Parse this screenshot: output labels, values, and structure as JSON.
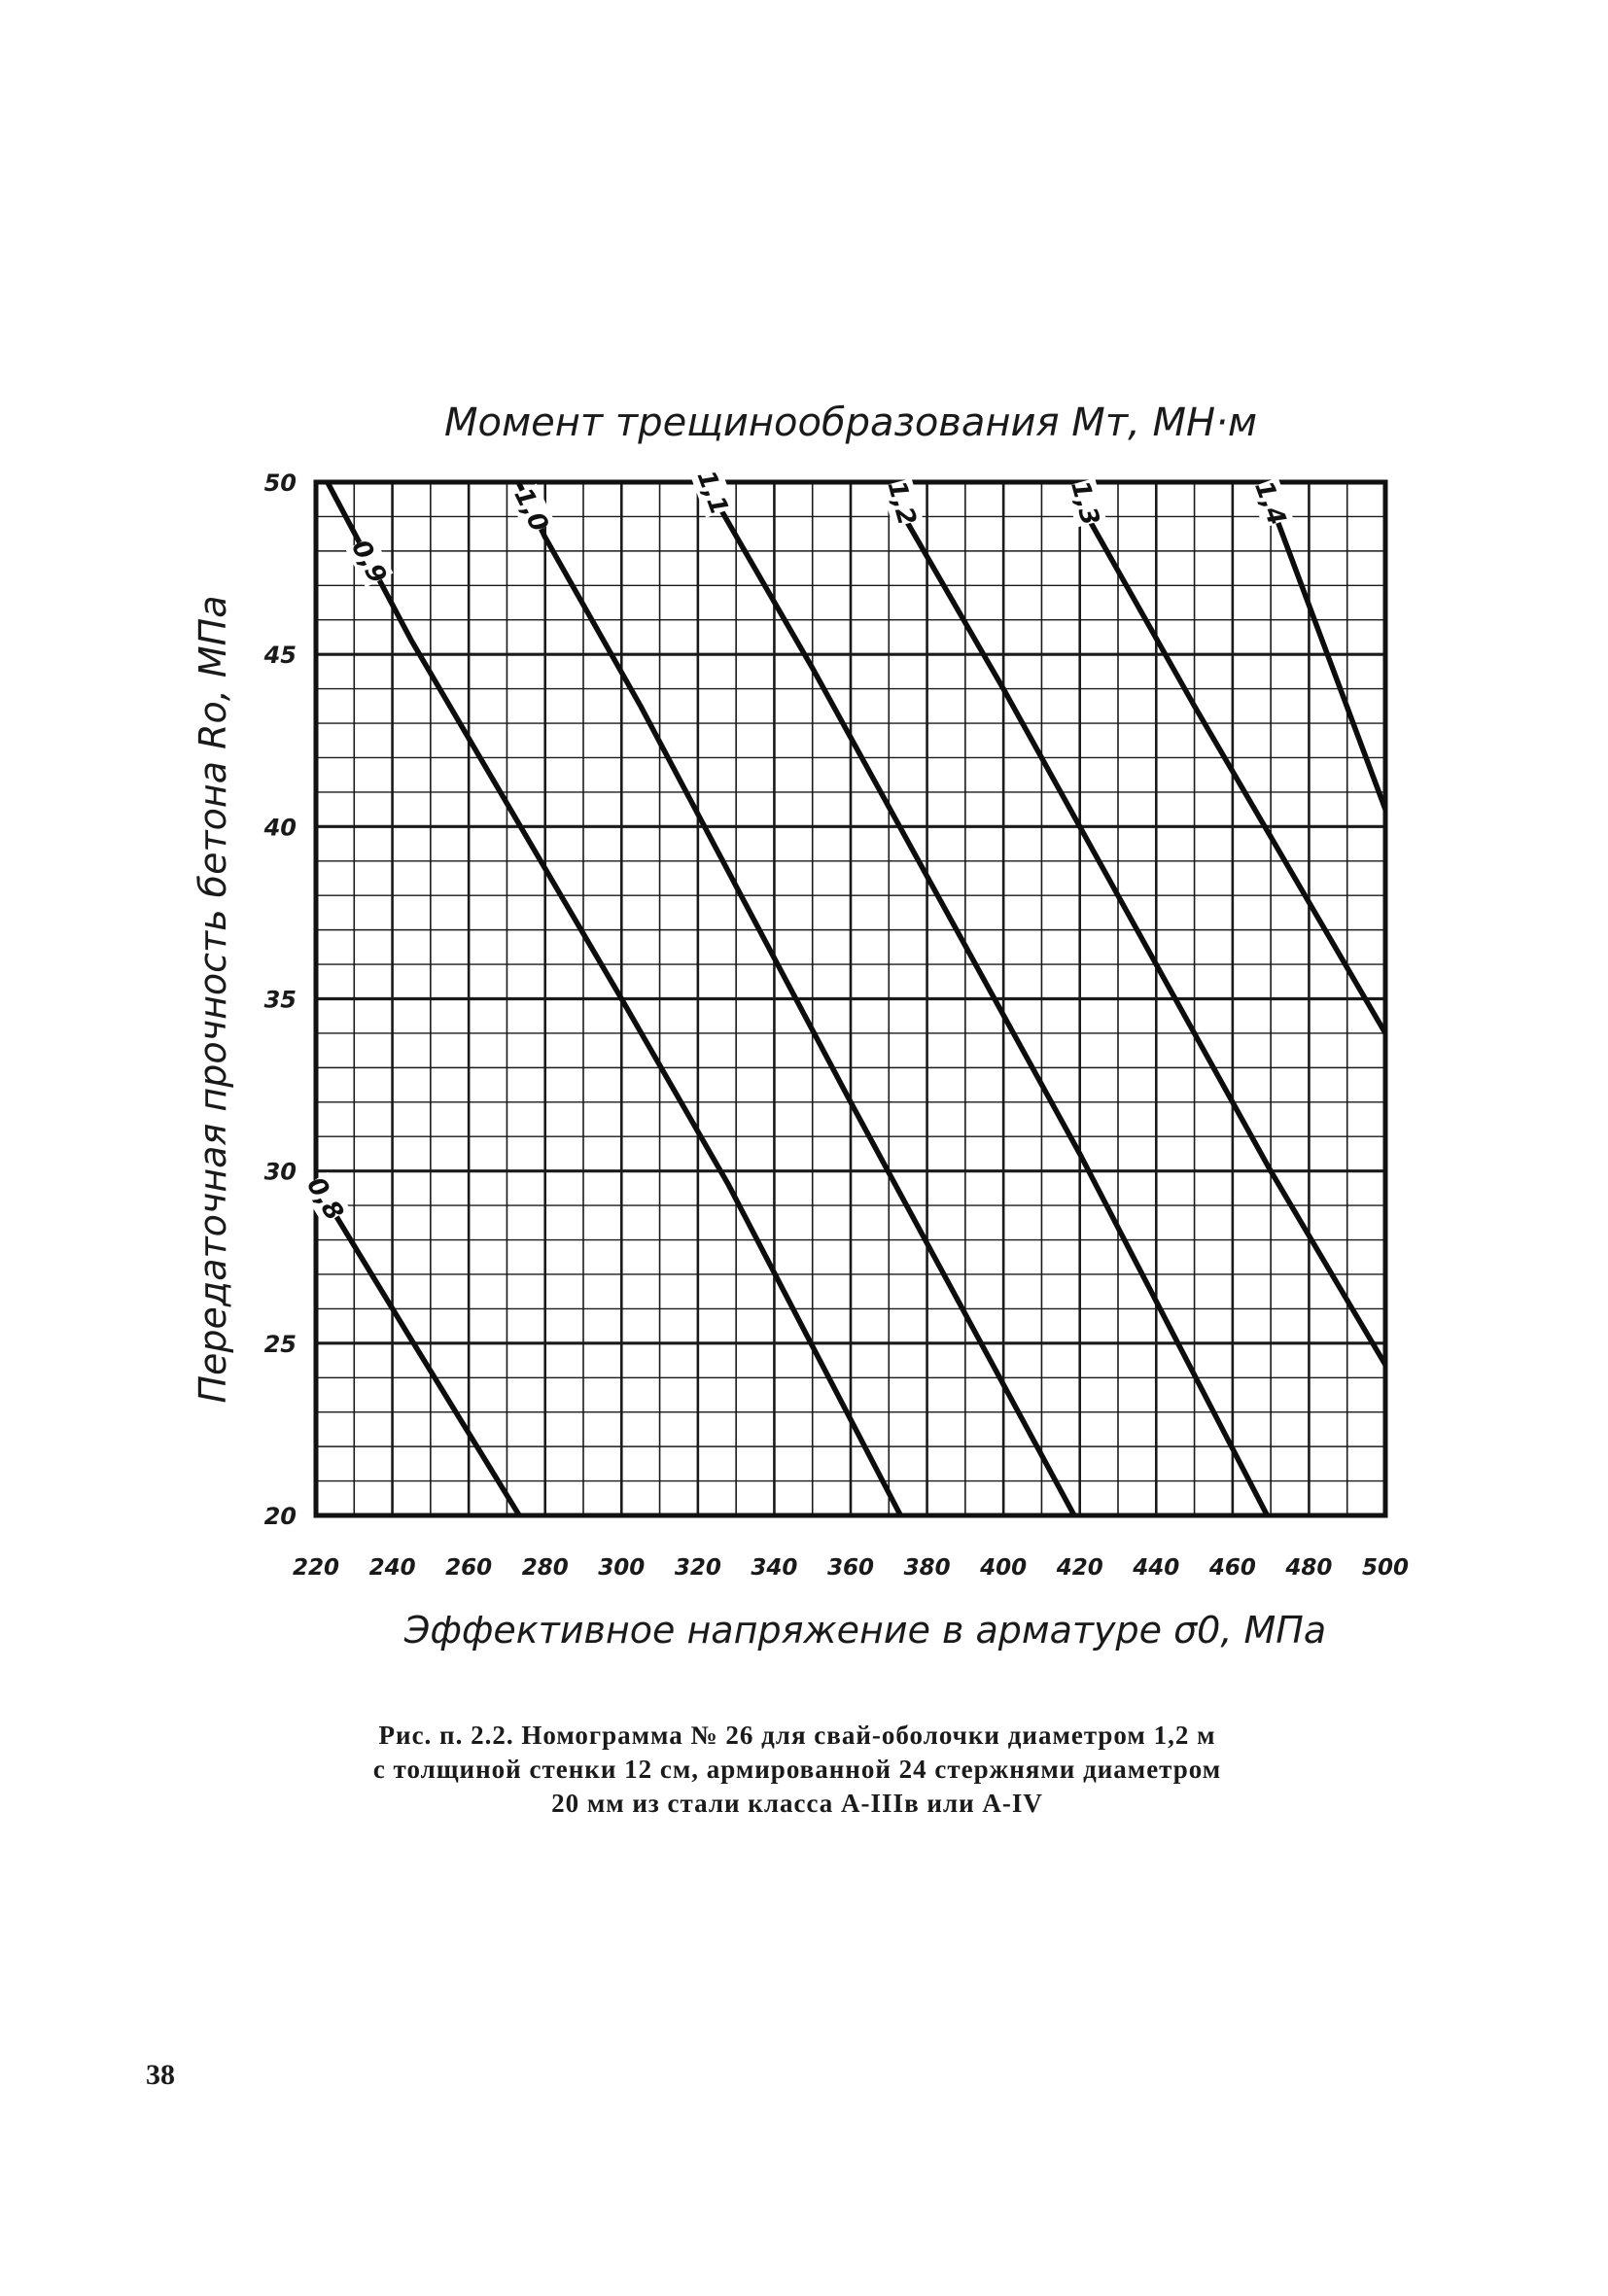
{
  "chart_data": {
    "type": "line",
    "title": "Момент трещинообразования Mт, МН·м",
    "xlabel": "Эффективное напряжение в арматуре σ0, МПа",
    "ylabel": "Передаточная прочность бетона Rо, МПа",
    "xlim": [
      220,
      500
    ],
    "ylim": [
      20,
      50
    ],
    "x_ticks": [
      "220",
      "240",
      "260",
      "280",
      "300",
      "320",
      "340",
      "360",
      "380",
      "400",
      "420",
      "440",
      "460",
      "480",
      "500"
    ],
    "y_ticks": [
      "20",
      "25",
      "30",
      "35",
      "40",
      "45",
      "50"
    ],
    "grid": true,
    "series": [
      {
        "name": "0,8",
        "points": [
          [
            200,
            33.3
          ],
          [
            245,
            25.1
          ],
          [
            276,
            19.5
          ]
        ]
      },
      {
        "name": "0,9",
        "points": [
          [
            223,
            50.0
          ],
          [
            245,
            45.4
          ],
          [
            300,
            35.0
          ],
          [
            328,
            29.6
          ],
          [
            374,
            19.8
          ]
        ]
      },
      {
        "name": "1,0",
        "points": [
          [
            273,
            50.0
          ],
          [
            280,
            48.4
          ],
          [
            305,
            43.5
          ],
          [
            360,
            32.0
          ],
          [
            420,
            19.7
          ]
        ]
      },
      {
        "name": "1,1",
        "points": [
          [
            323,
            50.0
          ],
          [
            325,
            49.4
          ],
          [
            350,
            44.6
          ],
          [
            420,
            30.5
          ],
          [
            470,
            19.8
          ]
        ]
      },
      {
        "name": "1,2",
        "points": [
          [
            372,
            50.0
          ],
          [
            375,
            48.8
          ],
          [
            400,
            44.0
          ],
          [
            470,
            30.0
          ],
          [
            510,
            22.5
          ]
        ]
      },
      {
        "name": "1,3",
        "points": [
          [
            420,
            50.0
          ],
          [
            423,
            48.8
          ],
          [
            450,
            43.5
          ],
          [
            500,
            34.0
          ]
        ]
      },
      {
        "name": "1,4",
        "points": [
          [
            468,
            50.0
          ],
          [
            472,
            48.8
          ],
          [
            500,
            40.5
          ]
        ]
      }
    ]
  },
  "caption": {
    "line1": "Рис. п. 2.2. Номограмма № 26 для свай-оболочки диаметром 1,2 м",
    "line2": "с толщиной стенки 12 см, армированной 24 стержнями диаметром",
    "line3": "20 мм из стали класса A-IIIв или A-IV"
  },
  "page_number": "38"
}
